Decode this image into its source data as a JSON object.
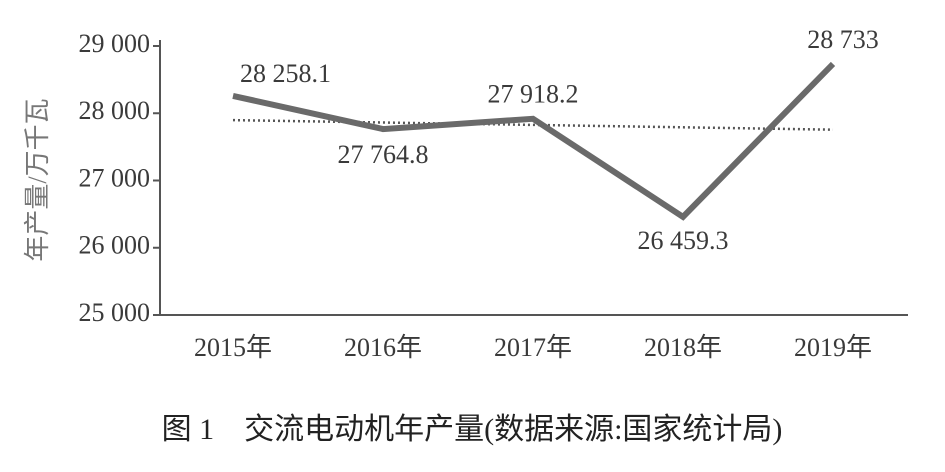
{
  "chart_data": {
    "type": "line",
    "caption": "图 1　交流电动机年产量(数据来源:国家统计局)",
    "y_label": "年产量/万千瓦",
    "categories": [
      "2015年",
      "2016年",
      "2017年",
      "2018年",
      "2019年"
    ],
    "values": [
      28258.1,
      27764.8,
      27918.2,
      26459.3,
      28733
    ],
    "value_labels": [
      "28 258.1",
      "27 764.8",
      "27 918.2",
      "26 459.3",
      "28 733"
    ],
    "color": "#6a6a6a",
    "trendline": "linear",
    "ylim": [
      25000,
      29000
    ],
    "yticks": [
      {
        "value": 25000,
        "label": "25 000"
      },
      {
        "value": 26000,
        "label": "26 000"
      },
      {
        "value": 27000,
        "label": "27 000"
      },
      {
        "value": 28000,
        "label": "28 000"
      },
      {
        "value": 29000,
        "label": "29 000"
      }
    ]
  }
}
